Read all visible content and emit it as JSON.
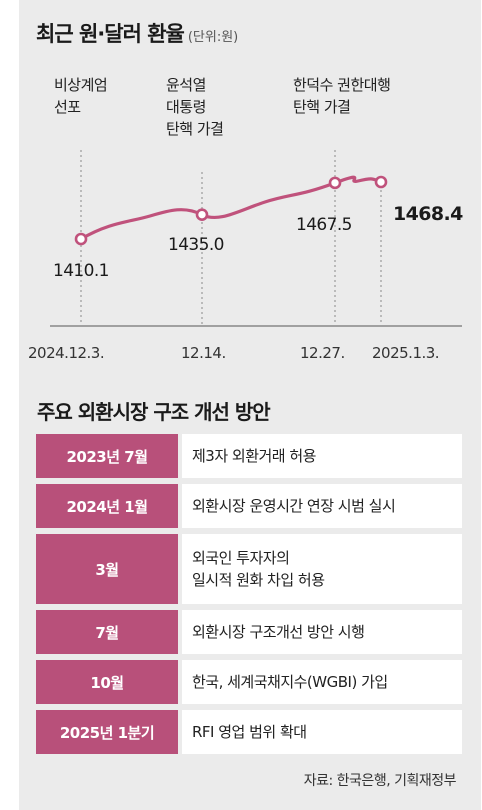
{
  "chart_data": {
    "type": "line",
    "title": "최근 원·달러 환율",
    "unit": "(단위:원)",
    "x": [
      "2024.12.3.",
      "12.14.",
      "12.27.",
      "2025.1.3."
    ],
    "values": [
      1410.1,
      1435.0,
      1467.5,
      1468.4
    ],
    "point_labels": [
      "1410.1",
      "1435.0",
      "1467.5",
      "1468.4"
    ],
    "annotations": [
      {
        "x": "2024.12.3.",
        "text": "비상계엄\n선포"
      },
      {
        "x": "12.14.",
        "text": "윤석열\n대통령\n탄핵 가결"
      },
      {
        "x": "12.27.",
        "text": "한덕수 권한대행\n탄핵 가결"
      }
    ],
    "colors": {
      "line": "#c0527c",
      "marker_fill": "#ffffff"
    }
  },
  "plan": {
    "title": "주요 외환시장 구조 개선 방안",
    "rows": [
      {
        "date": "2023년 7월",
        "desc": "제3자 외환거래 허용"
      },
      {
        "date": "2024년 1월",
        "desc": "외환시장 운영시간 연장 시범 실시"
      },
      {
        "date": "3월",
        "desc": "외국인 투자자의\n일시적 원화 차입 허용"
      },
      {
        "date": "7월",
        "desc": "외환시장 구조개선 방안 시행"
      },
      {
        "date": "10월",
        "desc": "한국, 세계국채지수(WGBI) 가입"
      },
      {
        "date": "2025년 1분기",
        "desc": "RFI 영업 범위 확대"
      }
    ],
    "colors": {
      "date_bg": "#b8507a",
      "desc_bg": "#ffffff"
    }
  },
  "source": "자료: 한국은행, 기획재정부"
}
